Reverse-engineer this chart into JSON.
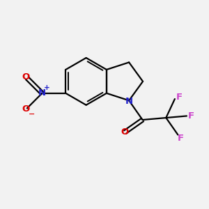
{
  "background_color": "#f2f2f2",
  "atom_colors": {
    "C": "#000000",
    "N": "#2222cc",
    "O": "#dd0000",
    "F": "#cc44cc",
    "bond": "#000000"
  },
  "bond_lw": 1.6,
  "inner_lw": 1.4
}
